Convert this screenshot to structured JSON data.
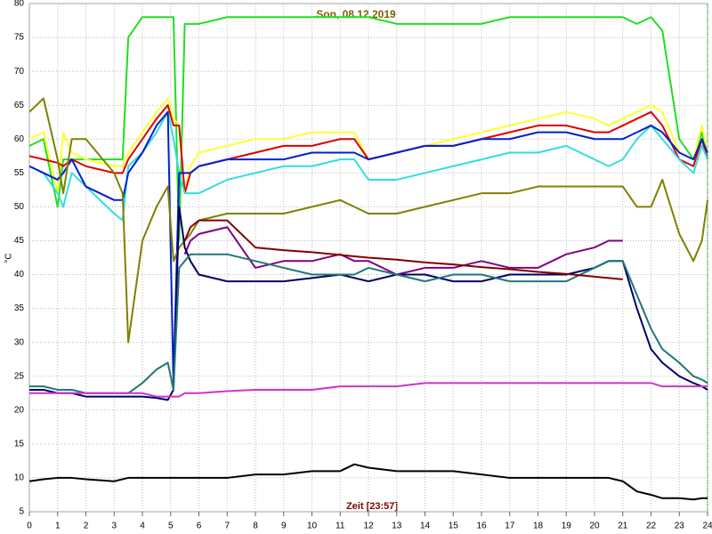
{
  "chart_data": {
    "type": "line",
    "title": "Son, 08.12.2019",
    "xlabel": "Zeit [23:57]",
    "ylabel": "°C",
    "x": [
      0,
      0.5,
      1,
      1.2,
      1.5,
      2,
      3,
      3.3,
      3.5,
      4,
      4.5,
      4.9,
      5.1,
      5.3,
      5.5,
      5.7,
      6,
      7,
      8,
      9,
      10,
      11,
      11.5,
      12,
      13,
      14,
      15,
      16,
      17,
      18,
      19,
      20,
      20.5,
      21,
      21.5,
      22,
      22.4,
      23,
      23.5,
      23.8,
      24
    ],
    "xlim": [
      0,
      24
    ],
    "xticks": [
      0,
      1,
      2,
      3,
      4,
      5,
      6,
      7,
      8,
      9,
      10,
      11,
      12,
      13,
      14,
      15,
      16,
      17,
      18,
      19,
      20,
      21,
      22,
      23,
      24
    ],
    "ylim": [
      5,
      80
    ],
    "yticks": [
      5,
      10,
      15,
      20,
      25,
      30,
      35,
      40,
      45,
      50,
      55,
      60,
      65,
      70,
      75,
      80
    ],
    "grid": true,
    "series": [
      {
        "color": "#22dd22",
        "values": [
          59,
          60,
          50,
          57,
          57,
          57,
          57,
          57,
          75,
          78,
          78,
          78,
          78,
          45,
          77,
          77,
          77,
          78,
          78,
          78,
          78,
          78,
          78,
          78,
          77,
          77,
          77,
          77,
          78,
          78,
          78,
          78,
          78,
          78,
          77,
          78,
          76,
          60,
          57,
          61,
          57
        ]
      },
      {
        "color": "#ffff33",
        "values": [
          60,
          61,
          52,
          61,
          58,
          57,
          56,
          56,
          58,
          61,
          64,
          66,
          63,
          62,
          52,
          56,
          58,
          59,
          60,
          60,
          61,
          61,
          61,
          57,
          58,
          59,
          60,
          61,
          62,
          63,
          64,
          63,
          62,
          63,
          64,
          65,
          64,
          58,
          57,
          62,
          58
        ]
      },
      {
        "color": "#dd0000",
        "values": [
          57.5,
          57,
          56.5,
          56,
          57,
          56,
          55,
          55,
          57,
          60,
          63,
          65,
          62,
          62,
          52,
          55,
          56,
          57,
          58,
          59,
          59,
          60,
          60,
          57,
          58,
          59,
          59,
          60,
          61,
          62,
          62,
          61,
          61,
          62,
          63,
          64,
          62,
          57,
          56,
          60,
          57
        ]
      },
      {
        "color": "#33dddd",
        "values": [
          56,
          55,
          52,
          50,
          55,
          53,
          49,
          48,
          56,
          58,
          61,
          64,
          60,
          55,
          52,
          52,
          52,
          54,
          55,
          56,
          56,
          57,
          57,
          54,
          54,
          55,
          56,
          57,
          58,
          58,
          59,
          57,
          56,
          57,
          60,
          62,
          60,
          57,
          55,
          59,
          57
        ]
      },
      {
        "color": "#0022cc",
        "values": [
          56,
          55,
          54,
          55,
          57,
          53,
          51,
          51,
          55,
          58,
          62,
          64,
          24,
          55,
          55,
          55,
          56,
          57,
          57,
          57,
          58,
          58,
          58,
          57,
          58,
          59,
          59,
          60,
          60,
          61,
          61,
          60,
          60,
          60,
          61,
          62,
          61,
          58,
          57,
          60,
          58
        ]
      },
      {
        "color": "#808000",
        "values": [
          64,
          66,
          57,
          52,
          60,
          60,
          55,
          52,
          30,
          45,
          50,
          53,
          42,
          44,
          45,
          46,
          48,
          49,
          49,
          49,
          50,
          51,
          50,
          49,
          49,
          50,
          51,
          52,
          52,
          53,
          53,
          53,
          53,
          53,
          50,
          50,
          54,
          46,
          42,
          45,
          51
        ]
      },
      {
        "color": "#800080",
        "values": [
          null,
          null,
          null,
          null,
          null,
          null,
          null,
          null,
          null,
          null,
          null,
          null,
          null,
          null,
          43,
          45,
          46,
          47,
          41,
          42,
          42,
          43,
          42,
          42,
          40,
          41,
          41,
          42,
          41,
          41,
          43,
          44,
          45,
          45,
          null,
          null,
          null,
          null,
          null,
          null,
          null
        ]
      },
      {
        "color": "#000066",
        "values": [
          23,
          23,
          22.5,
          22.5,
          22.5,
          22,
          22,
          22,
          22,
          22,
          21.8,
          21.5,
          23,
          50,
          44,
          42,
          40,
          39,
          39,
          39,
          39.5,
          40,
          39.5,
          39,
          40,
          40,
          39,
          39,
          40,
          40,
          40,
          41,
          42,
          42,
          35,
          29,
          27,
          25,
          24,
          23.5,
          23
        ]
      },
      {
        "color": "#227777",
        "values": [
          23.5,
          23.5,
          23,
          23,
          23,
          22.5,
          22.5,
          22.5,
          22.5,
          24,
          26,
          27,
          23,
          41,
          42,
          43,
          43,
          43,
          42,
          41,
          40,
          40,
          40,
          41,
          40,
          39,
          40,
          40,
          39,
          39,
          39,
          41,
          42,
          42,
          37,
          32,
          29,
          27,
          25,
          24.5,
          24
        ]
      },
      {
        "color": "#cc33cc",
        "values": [
          22.5,
          22.5,
          22.5,
          22.5,
          22.5,
          22.5,
          22.5,
          22.5,
          22.5,
          22.5,
          22,
          22,
          22,
          22,
          22.5,
          22.5,
          22.5,
          22.8,
          23,
          23,
          23,
          23.5,
          23.5,
          23.5,
          23.5,
          24,
          24,
          24,
          24,
          24,
          24,
          24,
          24,
          24,
          24,
          24,
          23.5,
          23.5,
          23.5,
          23.5,
          23.5
        ]
      },
      {
        "color": "#000000",
        "values": [
          9.5,
          9.8,
          10,
          10,
          10,
          9.8,
          9.5,
          9.8,
          10,
          10,
          10,
          10,
          10,
          10,
          10,
          10,
          10,
          10,
          10.5,
          10.5,
          11,
          11,
          12,
          11.5,
          11,
          11,
          11,
          10.5,
          10,
          10,
          10,
          10,
          10,
          9.5,
          8,
          7.5,
          7,
          7,
          6.8,
          7,
          7
        ]
      },
      {
        "color": "#800000",
        "values": [
          null,
          null,
          null,
          null,
          null,
          null,
          null,
          null,
          null,
          null,
          null,
          null,
          null,
          null,
          45,
          47,
          48,
          48,
          44,
          43.6,
          43.3,
          42.9,
          42.7,
          42.5,
          42.2,
          41.8,
          41.5,
          41.1,
          40.8,
          40.4,
          40.1,
          39.7,
          39.5,
          39.3,
          null,
          null,
          null,
          null,
          null,
          null,
          null
        ]
      }
    ]
  }
}
